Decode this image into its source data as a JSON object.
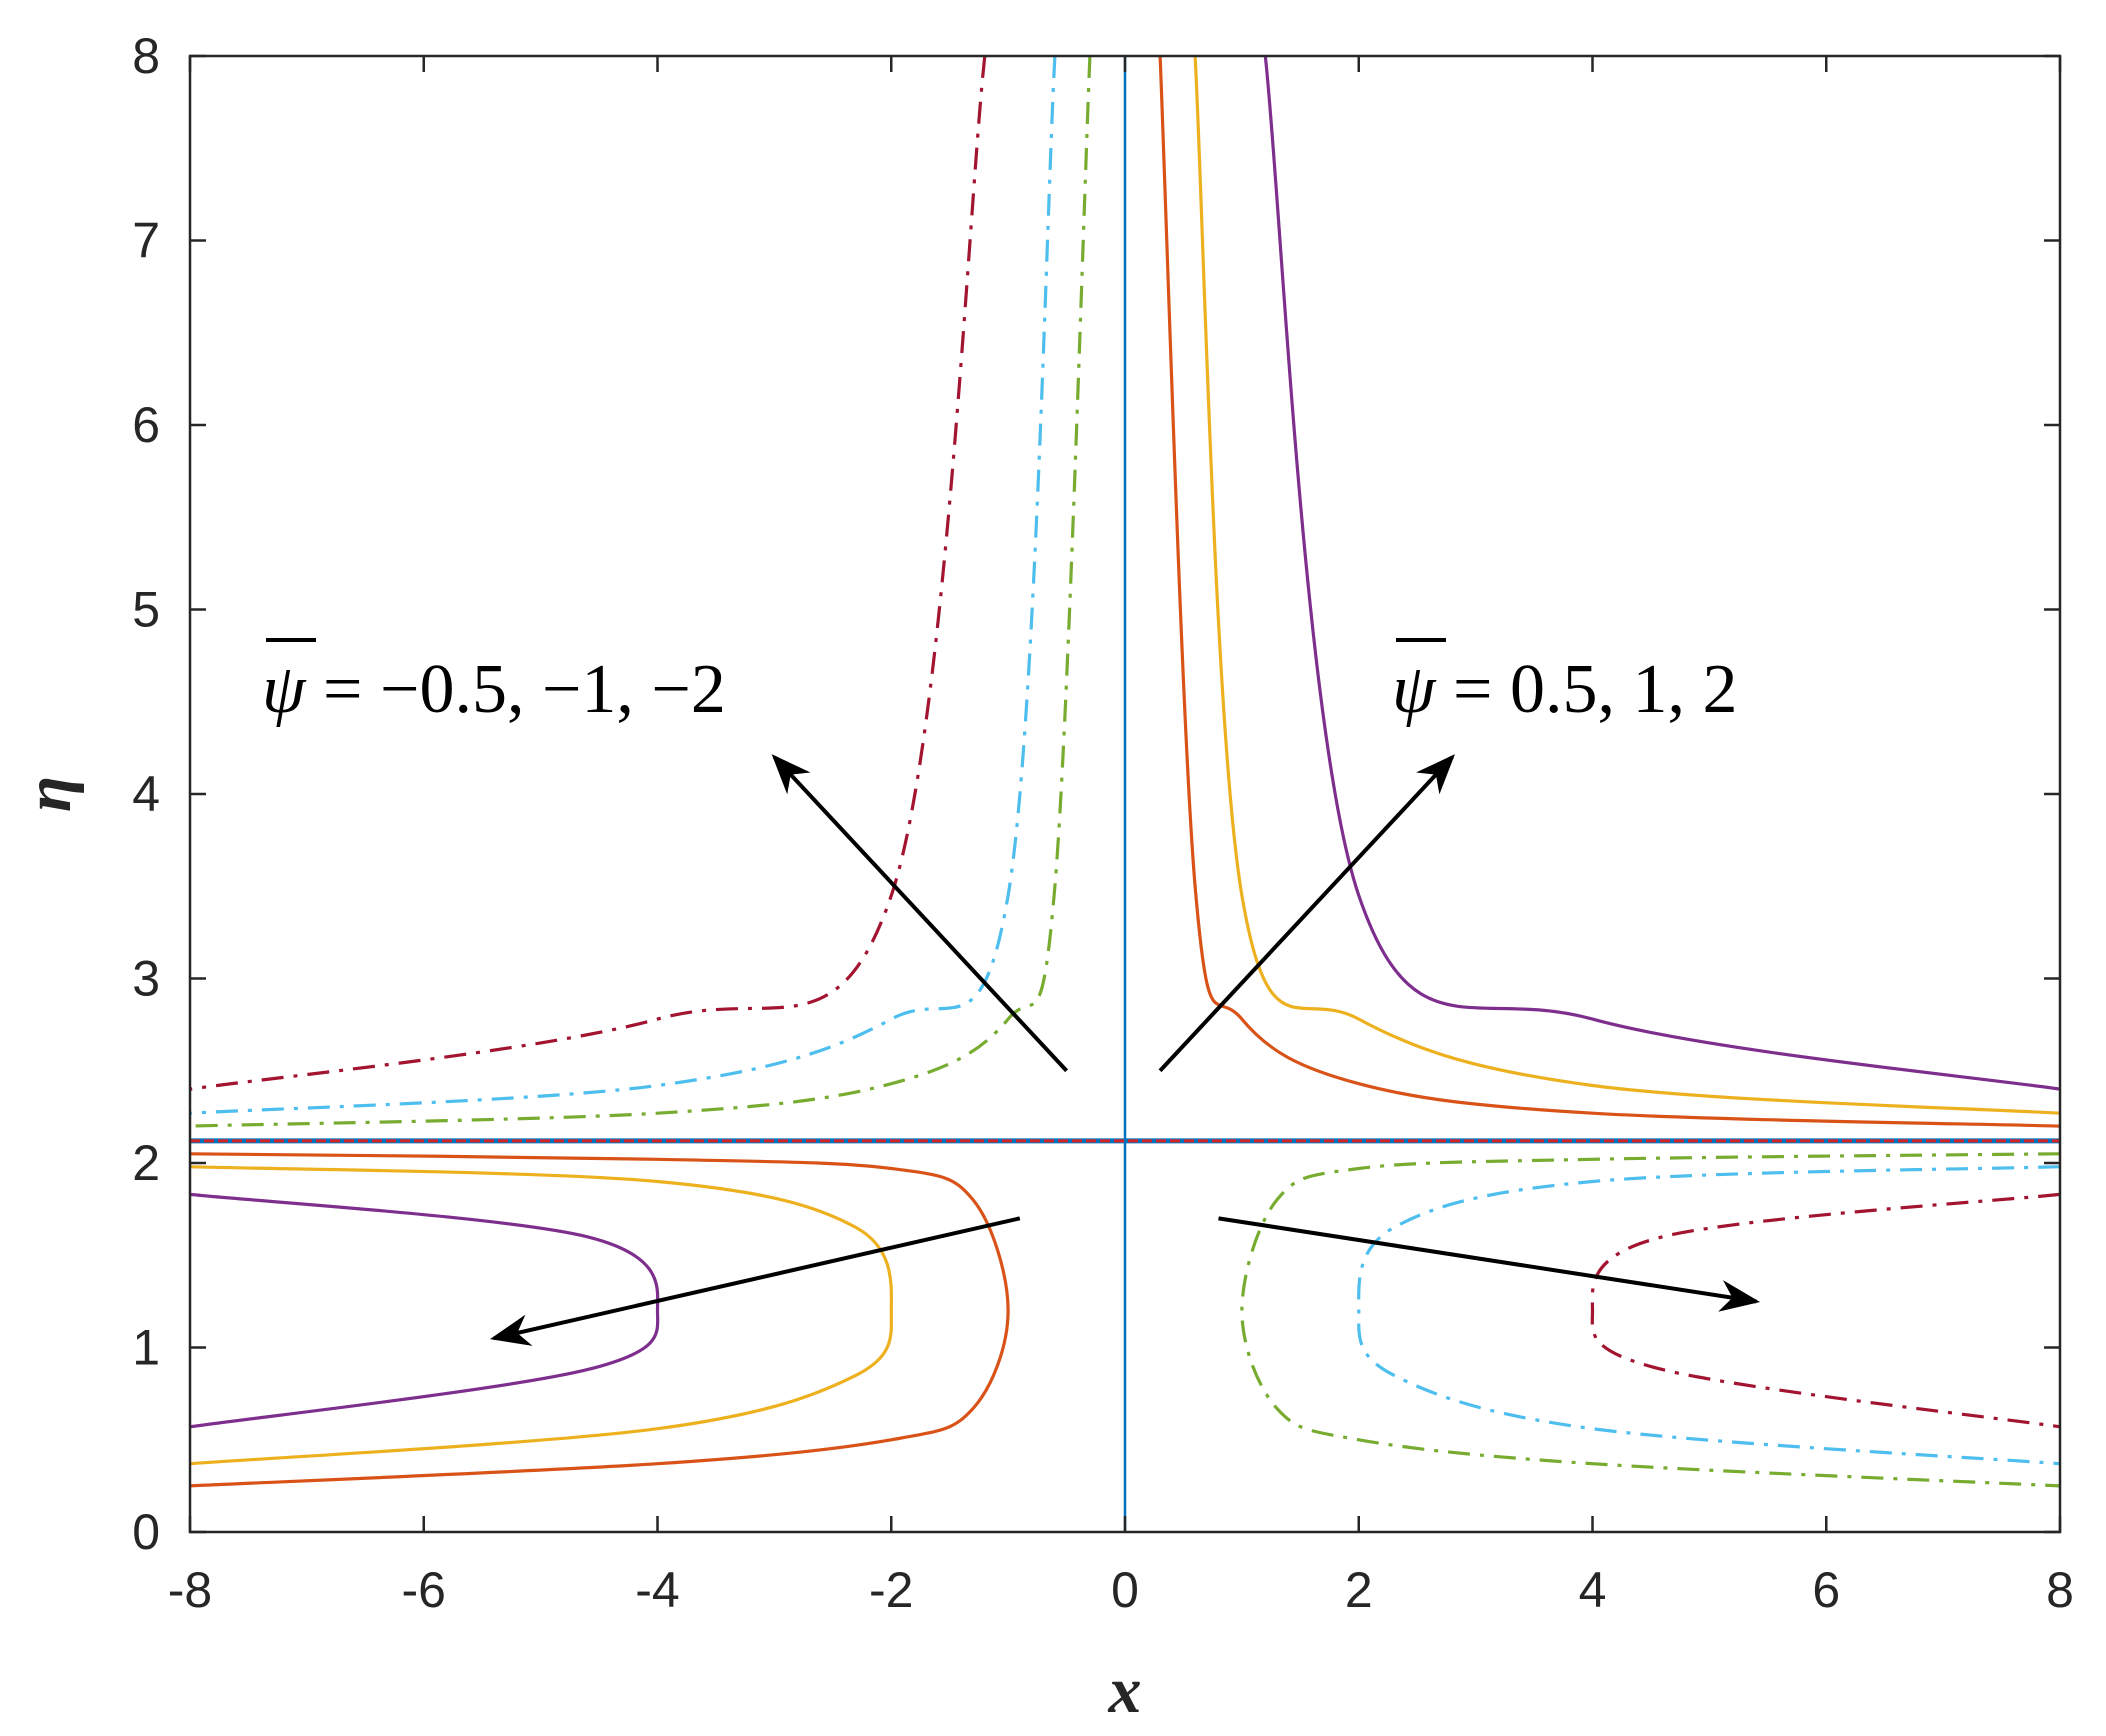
{
  "chart_data": {
    "type": "line",
    "xlabel": "x",
    "ylabel": "η",
    "xlim": [
      -8,
      8
    ],
    "ylim": [
      0,
      8
    ],
    "xticks": [
      "-8",
      "-6",
      "-4",
      "-2",
      "0",
      "2",
      "4",
      "6",
      "8"
    ],
    "yticks": [
      "0",
      "1",
      "2",
      "3",
      "4",
      "5",
      "6",
      "7",
      "8"
    ],
    "grid": false,
    "annotations": {
      "negative": {
        "text": "ψ = −0.5, −1, −2",
        "psi": "ψ",
        "rest": " = −0.5, −1, −2"
      },
      "positive": {
        "text": "ψ = 0.5, 1, 2",
        "psi": "ψ",
        "rest": " = 0.5, 1, 2"
      }
    },
    "colors": {
      "psi_0_5": "#D95319",
      "psi_1": "#EDB120",
      "psi_2": "#7E2F8E",
      "psi_neg_0_5": "#77AC30",
      "psi_neg_1": "#4DBEEE",
      "psi_neg_2": "#A2142F",
      "axis_line": "#0072BD",
      "separatrix": "#D62728"
    },
    "series": [
      {
        "psi": 0.5,
        "style": "solid",
        "color": "#D95319",
        "upper": {
          "x": [
            0.3,
            0.6,
            1,
            2,
            4,
            8
          ],
          "y": [
            8.0,
            3.5,
            2.78,
            2.43,
            2.27,
            2.2
          ]
        },
        "lower": {
          "vertex": [
            -1.0,
            1.2
          ],
          "x": [
            -8,
            -4,
            -2,
            -1.3,
            -1.0,
            -1.3,
            -2,
            -4,
            -8
          ],
          "y": [
            2.05,
            2.02,
            1.97,
            1.8,
            1.2,
            0.67,
            0.5,
            0.37,
            0.25
          ]
        }
      },
      {
        "psi": 1,
        "style": "solid",
        "color": "#EDB120",
        "upper": {
          "x": [
            0.6,
            1,
            2,
            4,
            8
          ],
          "y": [
            8.0,
            3.45,
            2.78,
            2.42,
            2.27
          ]
        },
        "lower": {
          "vertex": [
            -2.0,
            1.2
          ],
          "x": [
            -8,
            -4,
            -2.3,
            -2.0,
            -2.3,
            -4,
            -8
          ],
          "y": [
            1.98,
            1.9,
            1.65,
            1.2,
            0.85,
            0.56,
            0.37
          ]
        }
      },
      {
        "psi": 2,
        "style": "solid",
        "color": "#7E2F8E",
        "upper": {
          "x": [
            1.2,
            2,
            4,
            8
          ],
          "y": [
            8.0,
            3.45,
            2.78,
            2.4
          ]
        },
        "lower": {
          "vertex": [
            -4.0,
            1.2
          ],
          "x": [
            -8,
            -4.6,
            -4.0,
            -4.6,
            -8
          ],
          "y": [
            1.83,
            1.6,
            1.2,
            0.88,
            0.57
          ]
        }
      },
      {
        "psi": -0.5,
        "style": "dashdot",
        "color": "#77AC30",
        "upper": {
          "x": [
            -0.3,
            -0.6,
            -1,
            -2,
            -4,
            -8
          ],
          "y": [
            8.0,
            3.5,
            2.78,
            2.43,
            2.27,
            2.2
          ]
        },
        "lower": {
          "vertex": [
            1.0,
            1.2
          ],
          "x": [
            8,
            4,
            2,
            1.3,
            1.0,
            1.3,
            2,
            4,
            8
          ],
          "y": [
            2.05,
            2.02,
            1.97,
            1.8,
            1.2,
            0.67,
            0.5,
            0.37,
            0.25
          ]
        }
      },
      {
        "psi": -1,
        "style": "dashdot",
        "color": "#4DBEEE",
        "upper": {
          "x": [
            -0.6,
            -1,
            -2,
            -4,
            -8
          ],
          "y": [
            8.0,
            3.45,
            2.78,
            2.42,
            2.27
          ]
        },
        "lower": {
          "vertex": [
            2.0,
            1.2
          ],
          "x": [
            8,
            4,
            2.3,
            2.0,
            2.3,
            4,
            8
          ],
          "y": [
            1.98,
            1.9,
            1.65,
            1.2,
            0.85,
            0.56,
            0.37
          ]
        }
      },
      {
        "psi": -2,
        "style": "dashdot",
        "color": "#A2142F",
        "upper": {
          "x": [
            -1.2,
            -2,
            -4,
            -8
          ],
          "y": [
            8.0,
            3.45,
            2.78,
            2.4
          ]
        },
        "lower": {
          "vertex": [
            4.0,
            1.2
          ],
          "x": [
            8,
            4.6,
            4.0,
            4.6,
            8
          ],
          "y": [
            1.83,
            1.6,
            1.2,
            0.88,
            0.57
          ]
        }
      }
    ],
    "separatrices": {
      "horizontal_eta": 2.12,
      "vertical_x": 0
    },
    "arrows": [
      {
        "from": [
          -0.5,
          2.5
        ],
        "to": [
          -3.0,
          4.2
        ]
      },
      {
        "from": [
          0.3,
          2.5
        ],
        "to": [
          2.8,
          4.2
        ]
      },
      {
        "from": [
          -0.9,
          1.7
        ],
        "to": [
          -5.4,
          1.05
        ]
      },
      {
        "from": [
          0.8,
          1.7
        ],
        "to": [
          5.4,
          1.25
        ]
      }
    ]
  }
}
